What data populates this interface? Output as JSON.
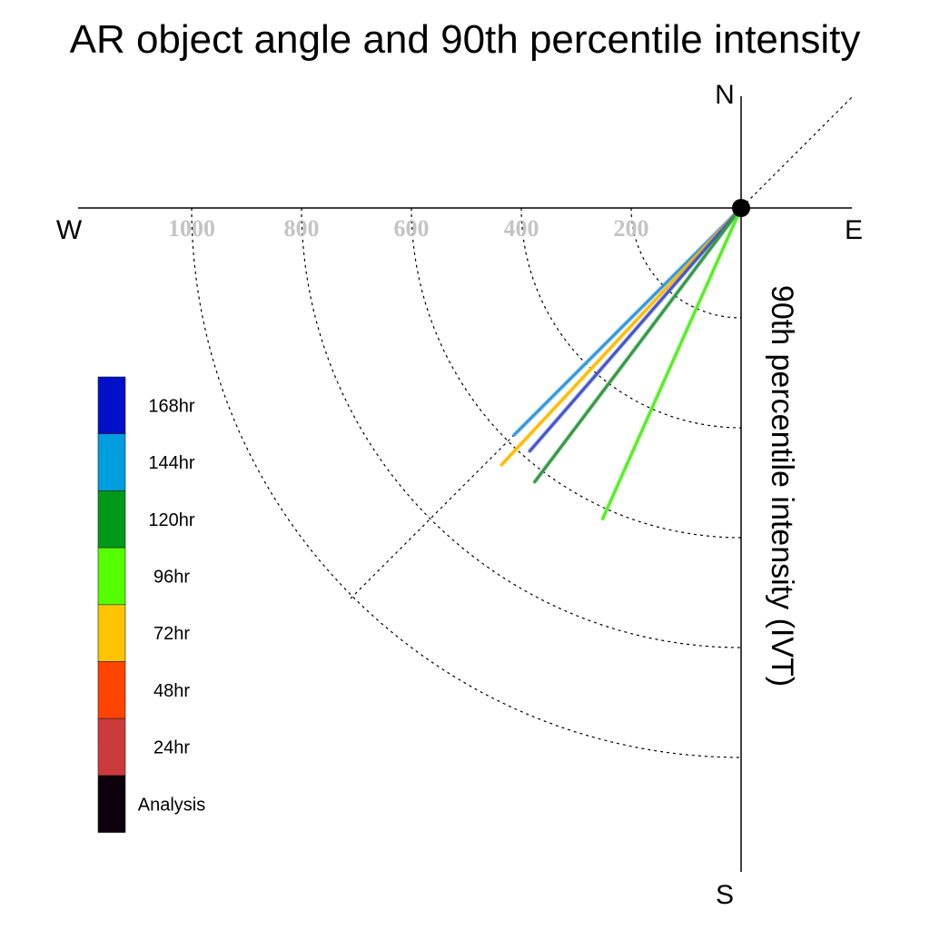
{
  "chart_data": {
    "type": "polar-line",
    "title": "AR object angle and 90th percentile intensity",
    "radial_label": "90th percentile intensity (IVT)",
    "directions": {
      "north": "N",
      "south": "S",
      "east": "E",
      "west": "W"
    },
    "radial_ticks": [
      200,
      400,
      600,
      800,
      1000
    ],
    "radial_tick_labels": [
      "200",
      "400",
      "600",
      "800",
      "1000"
    ],
    "radial_range": [
      0,
      1200
    ],
    "series": [
      {
        "name": "144hr",
        "color": "#3399dd",
        "angle_deg": 225,
        "value": 584
      },
      {
        "name": "72hr",
        "color": "#ffbb00",
        "angle_deg": 223,
        "value": 639
      },
      {
        "name": "168hr",
        "color": "#4455cc",
        "angle_deg": 221,
        "value": 586
      },
      {
        "name": "120hr",
        "color": "#339944",
        "angle_deg": 217,
        "value": 624
      },
      {
        "name": "96hr",
        "color": "#55ee22",
        "angle_deg": 204,
        "value": 619
      }
    ],
    "legend": {
      "entries": [
        {
          "label": "168hr",
          "color": "#0010c8"
        },
        {
          "label": "144hr",
          "color": "#009ddf"
        },
        {
          "label": "120hr",
          "color": "#00991a"
        },
        {
          "label": "96hr",
          "color": "#55ff00"
        },
        {
          "label": "72hr",
          "color": "#ffc400"
        },
        {
          "label": "48hr",
          "color": "#ff4400"
        },
        {
          "label": "24hr",
          "color": "#cc3b3b"
        },
        {
          "label": "Analysis",
          "color": "#0d020c"
        }
      ]
    }
  }
}
